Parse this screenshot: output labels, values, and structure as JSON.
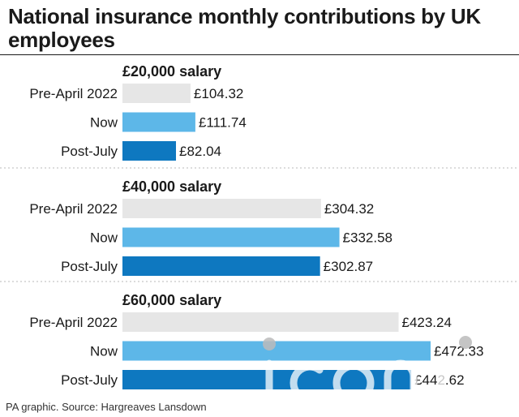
{
  "title": "National insurance monthly contributions by UK employees",
  "source": "PA graphic. Source: Hargreaves Lansdown",
  "watermark_text": "iconic",
  "colors": {
    "pre_april": "#e6e6e6",
    "now": "#5db7e8",
    "post_july": "#0e78c0",
    "text": "#1a1a1a",
    "divider": "#c8c8c8"
  },
  "chart_data": {
    "type": "bar",
    "orientation": "horizontal",
    "categories": [
      "Pre-April 2022",
      "Now",
      "Post-July"
    ],
    "value_prefix": "£",
    "grid": false,
    "legend": "none",
    "xlim": [
      0,
      480
    ],
    "groups": [
      {
        "title": "£20,000 salary",
        "values": [
          104.32,
          111.74,
          82.04
        ],
        "labels": [
          "£104.32",
          "£111.74",
          "£82.04"
        ]
      },
      {
        "title": "£40,000 salary",
        "values": [
          304.32,
          332.58,
          302.87
        ],
        "labels": [
          "£304.32",
          "£332.58",
          "£302.87"
        ]
      },
      {
        "title": "£60,000 salary",
        "values": [
          423.24,
          472.33,
          442.62
        ],
        "labels": [
          "£423.24",
          "£472.33",
          "£442.62"
        ]
      }
    ]
  }
}
